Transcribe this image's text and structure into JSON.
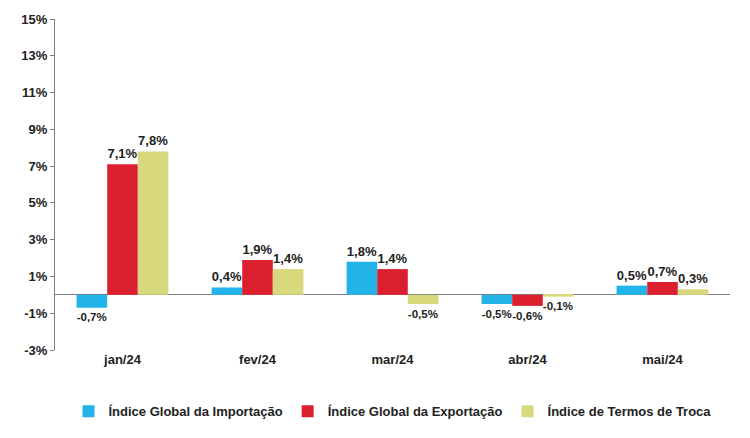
{
  "chart_data": {
    "type": "bar",
    "categories": [
      "jan/24",
      "fev/24",
      "mar/24",
      "abr/24",
      "mai/24"
    ],
    "series": [
      {
        "name": "Índice Global da Importação",
        "color": "#22B4E8",
        "values": [
          -0.7,
          0.4,
          1.8,
          -0.5,
          0.5
        ],
        "value_labels": [
          "-0,7%",
          "0,4%",
          "1,8%",
          "-0,5%",
          "0,5%"
        ]
      },
      {
        "name": "Índice Global da Exportação",
        "color": "#DC1F2E",
        "values": [
          7.1,
          1.9,
          1.4,
          -0.6,
          0.7
        ],
        "value_labels": [
          "7,1%",
          "1,9%",
          "1,4%",
          "-0,6%",
          "0,7%"
        ]
      },
      {
        "name": "Índice de Termos de Troca",
        "color": "#D8D87C",
        "values": [
          7.8,
          1.4,
          -0.5,
          -0.1,
          0.3
        ],
        "value_labels": [
          "7,8%",
          "1,4%",
          "-0,5%",
          "-0,1%",
          "0,3%"
        ]
      }
    ],
    "ylim": [
      -3,
      15
    ],
    "yticks": [
      {
        "value": -3,
        "label": "-3%"
      },
      {
        "value": -1,
        "label": "-1%"
      },
      {
        "value": 1,
        "label": "1%"
      },
      {
        "value": 3,
        "label": "3%"
      },
      {
        "value": 5,
        "label": "5%"
      },
      {
        "value": 7,
        "label": "7%"
      },
      {
        "value": 9,
        "label": "9%"
      },
      {
        "value": 11,
        "label": "11%"
      },
      {
        "value": 13,
        "label": "13%"
      },
      {
        "value": 15,
        "label": "15%"
      }
    ],
    "grid": false,
    "legend": "bottom",
    "data_labels": true
  }
}
